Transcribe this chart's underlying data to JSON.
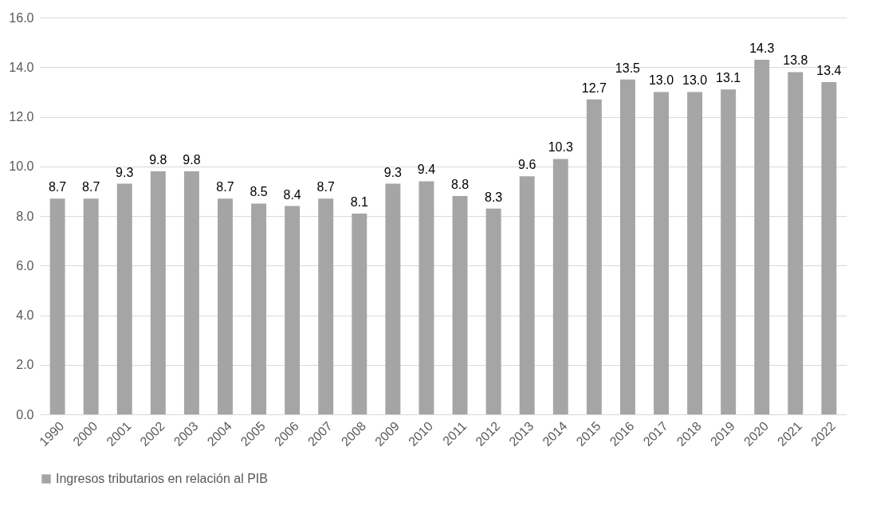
{
  "chart_data": {
    "type": "bar",
    "categories": [
      "1990",
      "2000",
      "2001",
      "2002",
      "2003",
      "2004",
      "2005",
      "2006",
      "2007",
      "2008",
      "2009",
      "2010",
      "2011",
      "2012",
      "2013",
      "2014",
      "2015",
      "2016",
      "2017",
      "2018",
      "2019",
      "2020",
      "2021",
      "2022"
    ],
    "series": [
      {
        "name": "Ingresos tributarios en relación al PIB",
        "color": "#a5a5a5",
        "values": [
          8.7,
          8.7,
          9.3,
          9.8,
          9.8,
          8.7,
          8.5,
          8.4,
          8.7,
          8.1,
          9.3,
          9.4,
          8.8,
          8.3,
          9.6,
          10.3,
          12.7,
          13.5,
          13.0,
          13.0,
          13.1,
          14.3,
          13.8,
          13.4
        ],
        "value_labels": [
          "8.7",
          "8.7",
          "9.3",
          "9.8",
          "9.8",
          "8.7",
          "8.5",
          "8.4",
          "8.7",
          "8.1",
          "9.3",
          "9.4",
          "8.8",
          "8.3",
          "9.6",
          "10.3",
          "12.7",
          "13.5",
          "13.0",
          "13.0",
          "13.1",
          "14.3",
          "13.8",
          "13.4"
        ]
      }
    ],
    "ylim": [
      0,
      16
    ],
    "yticks": [
      {
        "value": 0,
        "label": "0.0"
      },
      {
        "value": 2,
        "label": "2.0"
      },
      {
        "value": 4,
        "label": "4.0"
      },
      {
        "value": 6,
        "label": "6.0"
      },
      {
        "value": 8,
        "label": "8.0"
      },
      {
        "value": 10,
        "label": "10.0"
      },
      {
        "value": 12,
        "label": "12.0"
      },
      {
        "value": 14,
        "label": "14.0"
      },
      {
        "value": 16,
        "label": "16.0"
      }
    ],
    "grid": "y",
    "legend": "bottom"
  }
}
